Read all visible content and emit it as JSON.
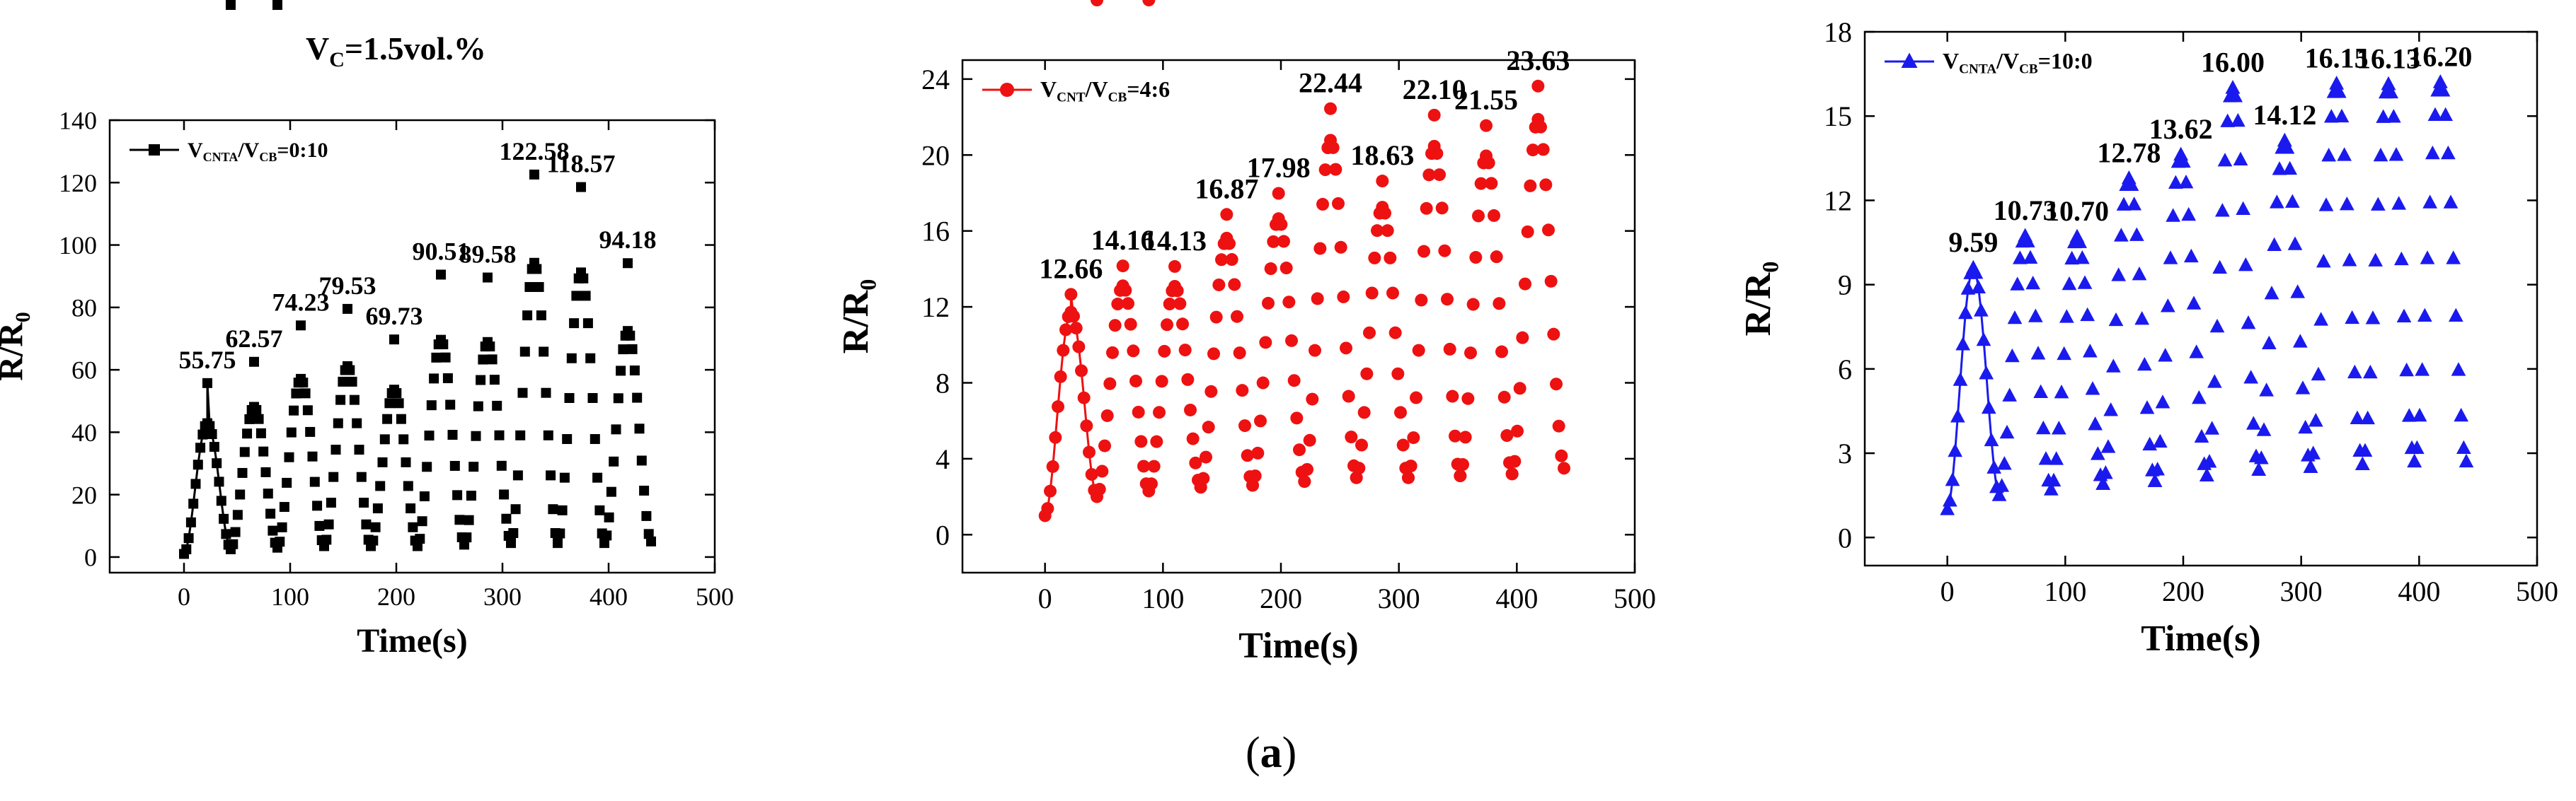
{
  "figure": {
    "title_main": "V",
    "title_sub": "C",
    "title_rest": "=1.5vol.%",
    "caption_open": "(",
    "caption_letter": "a",
    "caption_close": ")"
  },
  "chart_data": [
    {
      "type": "line",
      "marker": "square",
      "color": "#000000",
      "xlabel": "Time(s)",
      "ylabel": "R/R",
      "ylabel_sub": "0",
      "xlim": [
        -70,
        500
      ],
      "ylim": [
        -5,
        140
      ],
      "xticks": [
        0,
        100,
        200,
        300,
        400,
        500
      ],
      "yticks": [
        0,
        20,
        40,
        60,
        80,
        100,
        120,
        140
      ],
      "legend": {
        "parts": [
          "V",
          "CNTA",
          "/V",
          "CB",
          "=0:10"
        ],
        "placement": "top-left"
      },
      "peak_times": [
        22,
        66,
        110,
        154,
        198,
        242,
        286,
        330,
        374,
        418
      ],
      "peak_values": [
        55.75,
        62.57,
        74.23,
        79.53,
        69.73,
        90.51,
        89.58,
        122.58,
        118.57,
        94.18
      ],
      "valley_values": [
        1,
        2.5,
        3,
        3.5,
        3.5,
        3.5,
        4,
        4.5,
        4.5,
        4.5,
        5
      ],
      "end_time": 440,
      "spike_ratio": 1.3,
      "peak_labels": [
        "55.75",
        "62.57",
        "74.23",
        "79.53",
        "69.73",
        "90.51",
        "89.58",
        "122.58",
        "118.57",
        "94.18"
      ]
    },
    {
      "type": "line",
      "marker": "circle",
      "color": "#ee1111",
      "xlabel": "Time(s)",
      "ylabel": "R/R",
      "ylabel_sub": "0",
      "xlim": [
        -70,
        500
      ],
      "ylim": [
        -2,
        25
      ],
      "xticks": [
        0,
        100,
        200,
        300,
        400,
        500
      ],
      "yticks": [
        0,
        4,
        8,
        12,
        16,
        20,
        24
      ],
      "legend": {
        "parts": [
          "V",
          "CNT",
          "/V",
          "CB",
          "=4:6"
        ],
        "placement": "top-left"
      },
      "peak_times": [
        22,
        66,
        110,
        154,
        198,
        242,
        286,
        330,
        374,
        418
      ],
      "peak_values": [
        12.66,
        14.16,
        14.13,
        16.87,
        17.98,
        22.44,
        18.63,
        22.1,
        21.55,
        23.63
      ],
      "valley_values": [
        1.0,
        2.0,
        2.3,
        2.5,
        2.6,
        2.8,
        3.0,
        3.0,
        3.1,
        3.2,
        3.5
      ],
      "end_time": 440,
      "spike_ratio": 1.08,
      "peak_labels": [
        "12.66",
        "14.16",
        "14.13",
        "16.87",
        "17.98",
        "22.44",
        "18.63",
        "22.10",
        "21.55",
        "23.63"
      ]
    },
    {
      "type": "line",
      "marker": "triangle",
      "color": "#1a1aee",
      "xlabel": "Time(s)",
      "ylabel": "R/R",
      "ylabel_sub": "0",
      "xlim": [
        -70,
        500
      ],
      "ylim": [
        -1,
        18
      ],
      "xticks": [
        0,
        100,
        200,
        300,
        400,
        500
      ],
      "yticks": [
        0,
        3,
        6,
        9,
        12,
        15,
        18
      ],
      "legend": {
        "parts": [
          "V",
          "CNTA",
          "/V",
          "CB",
          "=10:0"
        ],
        "placement": "top-left"
      },
      "peak_times": [
        22,
        66,
        110,
        154,
        198,
        242,
        286,
        330,
        374,
        418
      ],
      "peak_values": [
        9.59,
        10.73,
        10.7,
        12.78,
        13.62,
        16.0,
        14.12,
        16.15,
        16.13,
        16.2
      ],
      "valley_values": [
        1.0,
        1.5,
        1.7,
        1.9,
        2.0,
        2.2,
        2.4,
        2.5,
        2.6,
        2.7,
        2.7
      ],
      "end_time": 440,
      "spike_ratio": 1.0,
      "peak_labels": [
        "9.59",
        "10.73",
        "10.70",
        "12.78",
        "13.62",
        "16.00",
        "14.12",
        "16.15",
        "16.13",
        "16.20"
      ]
    }
  ]
}
